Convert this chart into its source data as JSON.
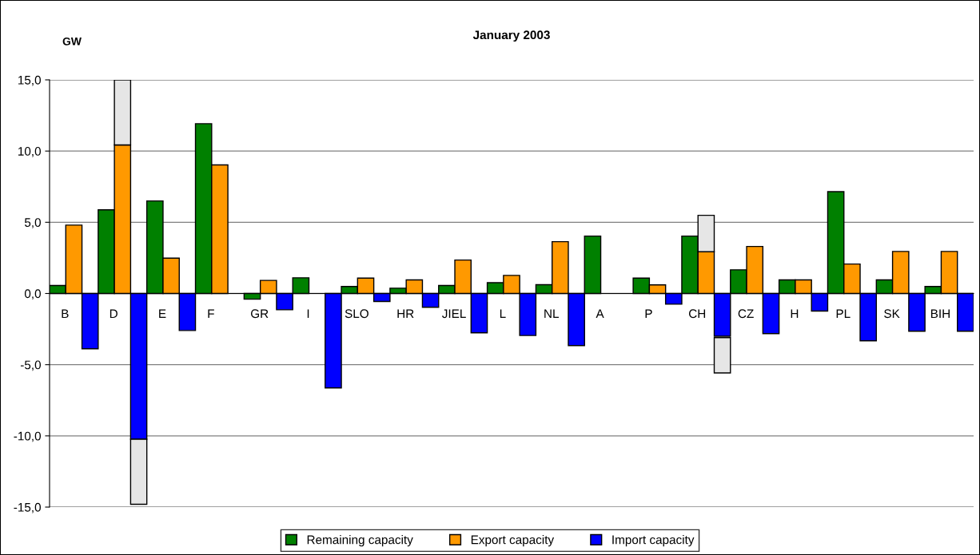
{
  "chart_data": {
    "type": "bar",
    "title": "January 2003",
    "ylabel": "GW",
    "categories": [
      "B",
      "D",
      "E",
      "F",
      "GR",
      "I",
      "SLO",
      "HR",
      "JIEL",
      "L",
      "NL",
      "A",
      "P",
      "CH",
      "CZ",
      "H",
      "PL",
      "SK",
      "BIH"
    ],
    "series": [
      {
        "name": "Remaining capacity",
        "color": "#008000",
        "values": [
          0.56,
          5.87,
          6.5,
          11.92,
          -0.4,
          1.1,
          0.49,
          0.37,
          0.56,
          0.76,
          0.62,
          4.03,
          1.08,
          4.03,
          1.66,
          0.95,
          7.15,
          0.95,
          0.49
        ]
      },
      {
        "name": "Export capacity",
        "color": "#ff9900",
        "values": [
          4.8,
          10.43,
          2.48,
          9.03,
          0.92,
          null,
          1.08,
          0.95,
          2.35,
          1.27,
          3.64,
          null,
          0.6,
          2.93,
          3.3,
          0.95,
          2.07,
          2.95,
          2.95
        ]
      },
      {
        "color": "#e6e6e6",
        "base": [
          null,
          10.43,
          null,
          null,
          null,
          null,
          null,
          null,
          null,
          null,
          null,
          null,
          null,
          2.93,
          null,
          null,
          null,
          null,
          null
        ],
        "values": [
          null,
          4.57,
          null,
          null,
          null,
          null,
          null,
          null,
          null,
          null,
          null,
          null,
          null,
          2.56,
          null,
          null,
          null,
          null,
          null
        ]
      },
      {
        "name": "Import capacity",
        "color": "#0000ff",
        "values": [
          -3.88,
          -10.23,
          -2.6,
          null,
          -1.14,
          -6.63,
          -0.56,
          -0.97,
          -2.76,
          -2.95,
          -3.66,
          null,
          -0.75,
          -3.0,
          -2.82,
          -1.23,
          -3.32,
          -2.65,
          -2.65
        ]
      },
      {
        "color": "#e6e6e6",
        "base": [
          null,
          -10.23,
          null,
          null,
          null,
          null,
          null,
          null,
          null,
          null,
          null,
          null,
          null,
          -3.1,
          null,
          null,
          null,
          null,
          null
        ],
        "values": [
          null,
          -4.57,
          null,
          null,
          null,
          null,
          null,
          null,
          null,
          null,
          null,
          null,
          null,
          -2.48,
          null,
          null,
          null,
          null,
          null
        ]
      }
    ],
    "ylim": [
      -15,
      15
    ],
    "yticks": [
      {
        "value": -15,
        "label": "-15,0"
      },
      {
        "value": -10,
        "label": "-10,0"
      },
      {
        "value": -5,
        "label": "-5,0"
      },
      {
        "value": 0,
        "label": "0,0"
      },
      {
        "value": 5,
        "label": "5,0"
      },
      {
        "value": 10,
        "label": "10,0"
      },
      {
        "value": 15,
        "label": "15,0"
      }
    ],
    "grid": "y",
    "legend": "bottom"
  }
}
